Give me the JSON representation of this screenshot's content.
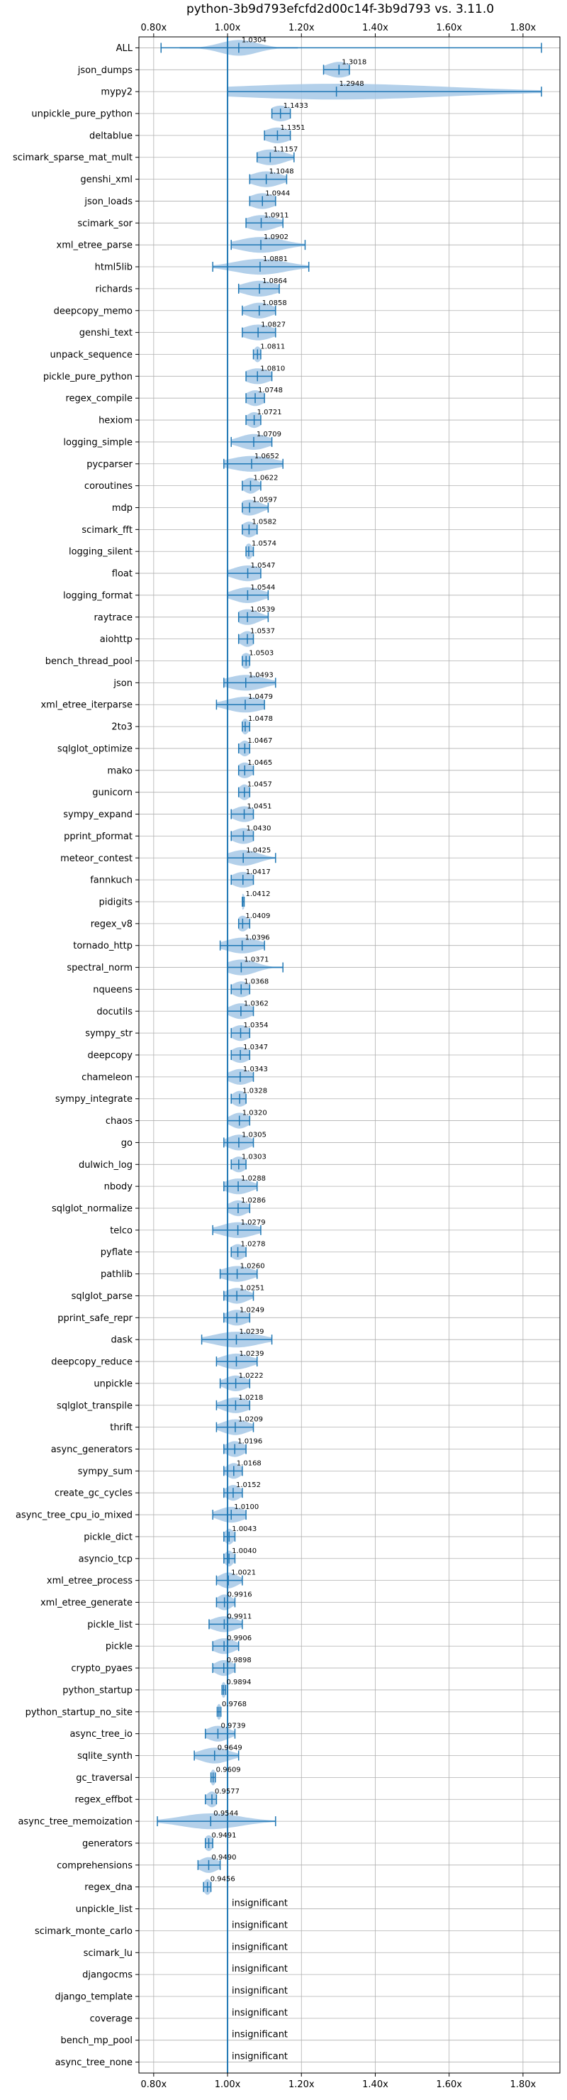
{
  "chart_data": {
    "type": "violin",
    "title": "python-3b9d793efcfd2d00c14f-3b9d793 vs. 3.11.0",
    "xlim": [
      0.76,
      1.9
    ],
    "x_ticks": [
      "0.80x",
      "1.00x",
      "1.20x",
      "1.40x",
      "1.60x",
      "1.80x"
    ],
    "x_tick_values": [
      0.8,
      1.0,
      1.2,
      1.4,
      1.6,
      1.8
    ],
    "reference_line": 1.0,
    "grid": true,
    "colors": {
      "violin": "#a6c8e6",
      "line": "#1f77b4"
    },
    "insignificant_label": "insignificant",
    "benchmarks": [
      {
        "name": "ALL",
        "label": "1.0304",
        "median": 1.0304,
        "min": 0.82,
        "max": 1.85,
        "spread": 0.05
      },
      {
        "name": "json_dumps",
        "label": "1.3018",
        "median": 1.3018,
        "min": 1.26,
        "max": 1.33,
        "spread": 0.035
      },
      {
        "name": "mypy2",
        "label": "1.2948",
        "median": 1.2948,
        "min": 1.0,
        "max": 1.85,
        "spread": 0.3
      },
      {
        "name": "unpickle_pure_python",
        "label": "1.1433",
        "median": 1.1433,
        "min": 1.12,
        "max": 1.17,
        "spread": 0.03
      },
      {
        "name": "deltablue",
        "label": "1.1351",
        "median": 1.1351,
        "min": 1.1,
        "max": 1.17,
        "spread": 0.035
      },
      {
        "name": "scimark_sparse_mat_mult",
        "label": "1.1157",
        "median": 1.1157,
        "min": 1.08,
        "max": 1.18,
        "spread": 0.04
      },
      {
        "name": "genshi_xml",
        "label": "1.1048",
        "median": 1.1048,
        "min": 1.06,
        "max": 1.16,
        "spread": 0.04
      },
      {
        "name": "json_loads",
        "label": "1.0944",
        "median": 1.0944,
        "min": 1.06,
        "max": 1.13,
        "spread": 0.035
      },
      {
        "name": "scimark_sor",
        "label": "1.0911",
        "median": 1.0911,
        "min": 1.05,
        "max": 1.15,
        "spread": 0.04
      },
      {
        "name": "xml_etree_parse",
        "label": "1.0902",
        "median": 1.0902,
        "min": 1.01,
        "max": 1.21,
        "spread": 0.06
      },
      {
        "name": "html5lib",
        "label": "1.0881",
        "median": 1.0881,
        "min": 0.96,
        "max": 1.22,
        "spread": 0.07
      },
      {
        "name": "richards",
        "label": "1.0864",
        "median": 1.0864,
        "min": 1.03,
        "max": 1.14,
        "spread": 0.045
      },
      {
        "name": "deepcopy_memo",
        "label": "1.0858",
        "median": 1.0858,
        "min": 1.04,
        "max": 1.13,
        "spread": 0.035
      },
      {
        "name": "genshi_text",
        "label": "1.0827",
        "median": 1.0827,
        "min": 1.04,
        "max": 1.13,
        "spread": 0.04
      },
      {
        "name": "unpack_sequence",
        "label": "1.0811",
        "median": 1.0811,
        "min": 1.07,
        "max": 1.09,
        "spread": 0.01
      },
      {
        "name": "pickle_pure_python",
        "label": "1.0810",
        "median": 1.081,
        "min": 1.05,
        "max": 1.12,
        "spread": 0.035
      },
      {
        "name": "regex_compile",
        "label": "1.0748",
        "median": 1.0748,
        "min": 1.05,
        "max": 1.1,
        "spread": 0.025
      },
      {
        "name": "hexiom",
        "label": "1.0721",
        "median": 1.0721,
        "min": 1.05,
        "max": 1.09,
        "spread": 0.02
      },
      {
        "name": "logging_simple",
        "label": "1.0709",
        "median": 1.0709,
        "min": 1.01,
        "max": 1.12,
        "spread": 0.04
      },
      {
        "name": "pycparser",
        "label": "1.0652",
        "median": 1.0652,
        "min": 0.99,
        "max": 1.15,
        "spread": 0.06
      },
      {
        "name": "coroutines",
        "label": "1.0622",
        "median": 1.0622,
        "min": 1.04,
        "max": 1.09,
        "spread": 0.02
      },
      {
        "name": "mdp",
        "label": "1.0597",
        "median": 1.0597,
        "min": 1.04,
        "max": 1.11,
        "spread": 0.03
      },
      {
        "name": "scimark_fft",
        "label": "1.0582",
        "median": 1.0582,
        "min": 1.04,
        "max": 1.08,
        "spread": 0.02
      },
      {
        "name": "logging_silent",
        "label": "1.0574",
        "median": 1.0574,
        "min": 1.05,
        "max": 1.07,
        "spread": 0.01
      },
      {
        "name": "float",
        "label": "1.0547",
        "median": 1.0547,
        "min": 1.0,
        "max": 1.09,
        "spread": 0.04
      },
      {
        "name": "logging_format",
        "label": "1.0544",
        "median": 1.0544,
        "min": 1.0,
        "max": 1.11,
        "spread": 0.04
      },
      {
        "name": "raytrace",
        "label": "1.0539",
        "median": 1.0539,
        "min": 1.03,
        "max": 1.11,
        "spread": 0.03
      },
      {
        "name": "aiohttp",
        "label": "1.0537",
        "median": 1.0537,
        "min": 1.03,
        "max": 1.07,
        "spread": 0.02
      },
      {
        "name": "bench_thread_pool",
        "label": "1.0503",
        "median": 1.0503,
        "min": 1.04,
        "max": 1.06,
        "spread": 0.015
      },
      {
        "name": "json",
        "label": "1.0493",
        "median": 1.0493,
        "min": 0.99,
        "max": 1.13,
        "spread": 0.05
      },
      {
        "name": "xml_etree_iterparse",
        "label": "1.0479",
        "median": 1.0479,
        "min": 0.97,
        "max": 1.1,
        "spread": 0.05
      },
      {
        "name": "2to3",
        "label": "1.0478",
        "median": 1.0478,
        "min": 1.04,
        "max": 1.06,
        "spread": 0.01
      },
      {
        "name": "sqlglot_optimize",
        "label": "1.0467",
        "median": 1.0467,
        "min": 1.03,
        "max": 1.06,
        "spread": 0.015
      },
      {
        "name": "mako",
        "label": "1.0465",
        "median": 1.0465,
        "min": 1.03,
        "max": 1.07,
        "spread": 0.02
      },
      {
        "name": "gunicorn",
        "label": "1.0457",
        "median": 1.0457,
        "min": 1.03,
        "max": 1.06,
        "spread": 0.015
      },
      {
        "name": "sympy_expand",
        "label": "1.0451",
        "median": 1.0451,
        "min": 1.01,
        "max": 1.07,
        "spread": 0.03
      },
      {
        "name": "pprint_pformat",
        "label": "1.0430",
        "median": 1.043,
        "min": 1.01,
        "max": 1.07,
        "spread": 0.03
      },
      {
        "name": "meteor_contest",
        "label": "1.0425",
        "median": 1.0425,
        "min": 1.0,
        "max": 1.13,
        "spread": 0.04
      },
      {
        "name": "fannkuch",
        "label": "1.0417",
        "median": 1.0417,
        "min": 1.01,
        "max": 1.07,
        "spread": 0.03
      },
      {
        "name": "pidigits",
        "label": "1.0412",
        "median": 1.0412,
        "min": 1.04,
        "max": 1.045,
        "spread": 0.006
      },
      {
        "name": "regex_v8",
        "label": "1.0409",
        "median": 1.0409,
        "min": 1.03,
        "max": 1.06,
        "spread": 0.015
      },
      {
        "name": "tornado_http",
        "label": "1.0396",
        "median": 1.0396,
        "min": 0.98,
        "max": 1.1,
        "spread": 0.045
      },
      {
        "name": "spectral_norm",
        "label": "1.0371",
        "median": 1.0371,
        "min": 1.0,
        "max": 1.15,
        "spread": 0.04
      },
      {
        "name": "nqueens",
        "label": "1.0368",
        "median": 1.0368,
        "min": 1.01,
        "max": 1.06,
        "spread": 0.025
      },
      {
        "name": "docutils",
        "label": "1.0362",
        "median": 1.0362,
        "min": 1.0,
        "max": 1.07,
        "spread": 0.03
      },
      {
        "name": "sympy_str",
        "label": "1.0354",
        "median": 1.0354,
        "min": 1.01,
        "max": 1.06,
        "spread": 0.025
      },
      {
        "name": "deepcopy",
        "label": "1.0347",
        "median": 1.0347,
        "min": 1.01,
        "max": 1.06,
        "spread": 0.025
      },
      {
        "name": "chameleon",
        "label": "1.0343",
        "median": 1.0343,
        "min": 1.0,
        "max": 1.07,
        "spread": 0.03
      },
      {
        "name": "sympy_integrate",
        "label": "1.0328",
        "median": 1.0328,
        "min": 1.01,
        "max": 1.05,
        "spread": 0.02
      },
      {
        "name": "chaos",
        "label": "1.0320",
        "median": 1.032,
        "min": 1.0,
        "max": 1.06,
        "spread": 0.025
      },
      {
        "name": "go",
        "label": "1.0305",
        "median": 1.0305,
        "min": 0.99,
        "max": 1.07,
        "spread": 0.03
      },
      {
        "name": "dulwich_log",
        "label": "1.0303",
        "median": 1.0303,
        "min": 1.01,
        "max": 1.05,
        "spread": 0.02
      },
      {
        "name": "nbody",
        "label": "1.0288",
        "median": 1.0288,
        "min": 0.99,
        "max": 1.08,
        "spread": 0.035
      },
      {
        "name": "sqlglot_normalize",
        "label": "1.0286",
        "median": 1.0286,
        "min": 1.0,
        "max": 1.06,
        "spread": 0.025
      },
      {
        "name": "telco",
        "label": "1.0279",
        "median": 1.0279,
        "min": 0.96,
        "max": 1.09,
        "spread": 0.045
      },
      {
        "name": "pyflate",
        "label": "1.0278",
        "median": 1.0278,
        "min": 1.01,
        "max": 1.05,
        "spread": 0.02
      },
      {
        "name": "pathlib",
        "label": "1.0260",
        "median": 1.026,
        "min": 0.98,
        "max": 1.08,
        "spread": 0.04
      },
      {
        "name": "sqlglot_parse",
        "label": "1.0251",
        "median": 1.0251,
        "min": 0.99,
        "max": 1.07,
        "spread": 0.03
      },
      {
        "name": "pprint_safe_repr",
        "label": "1.0249",
        "median": 1.0249,
        "min": 0.99,
        "max": 1.06,
        "spread": 0.03
      },
      {
        "name": "dask",
        "label": "1.0239",
        "median": 1.0239,
        "min": 0.93,
        "max": 1.12,
        "spread": 0.06
      },
      {
        "name": "deepcopy_reduce",
        "label": "1.0239",
        "median": 1.0239,
        "min": 0.97,
        "max": 1.08,
        "spread": 0.04
      },
      {
        "name": "unpickle",
        "label": "1.0222",
        "median": 1.0222,
        "min": 0.98,
        "max": 1.06,
        "spread": 0.03
      },
      {
        "name": "sqlglot_transpile",
        "label": "1.0218",
        "median": 1.0218,
        "min": 0.97,
        "max": 1.06,
        "spread": 0.035
      },
      {
        "name": "thrift",
        "label": "1.0209",
        "median": 1.0209,
        "min": 0.97,
        "max": 1.07,
        "spread": 0.035
      },
      {
        "name": "async_generators",
        "label": "1.0196",
        "median": 1.0196,
        "min": 0.99,
        "max": 1.05,
        "spread": 0.025
      },
      {
        "name": "sympy_sum",
        "label": "1.0168",
        "median": 1.0168,
        "min": 0.99,
        "max": 1.04,
        "spread": 0.02
      },
      {
        "name": "create_gc_cycles",
        "label": "1.0152",
        "median": 1.0152,
        "min": 0.99,
        "max": 1.04,
        "spread": 0.02
      },
      {
        "name": "async_tree_cpu_io_mixed",
        "label": "1.0100",
        "median": 1.01,
        "min": 0.96,
        "max": 1.05,
        "spread": 0.035
      },
      {
        "name": "pickle_dict",
        "label": "1.0043",
        "median": 1.0043,
        "min": 0.99,
        "max": 1.02,
        "spread": 0.012
      },
      {
        "name": "asyncio_tcp",
        "label": "1.0040",
        "median": 1.004,
        "min": 0.99,
        "max": 1.02,
        "spread": 0.012
      },
      {
        "name": "xml_etree_process",
        "label": "1.0021",
        "median": 1.0021,
        "min": 0.97,
        "max": 1.04,
        "spread": 0.025
      },
      {
        "name": "xml_etree_generate",
        "label": "0.9916",
        "median": 0.9916,
        "min": 0.97,
        "max": 1.02,
        "spread": 0.02
      },
      {
        "name": "pickle_list",
        "label": "0.9911",
        "median": 0.9911,
        "min": 0.95,
        "max": 1.04,
        "spread": 0.035
      },
      {
        "name": "pickle",
        "label": "0.9906",
        "median": 0.9906,
        "min": 0.96,
        "max": 1.03,
        "spread": 0.03
      },
      {
        "name": "crypto_pyaes",
        "label": "0.9898",
        "median": 0.9898,
        "min": 0.96,
        "max": 1.02,
        "spread": 0.025
      },
      {
        "name": "python_startup",
        "label": "0.9894",
        "median": 0.9894,
        "min": 0.985,
        "max": 0.995,
        "spread": 0.006
      },
      {
        "name": "python_startup_no_site",
        "label": "0.9768",
        "median": 0.9768,
        "min": 0.972,
        "max": 0.982,
        "spread": 0.006
      },
      {
        "name": "async_tree_io",
        "label": "0.9739",
        "median": 0.9739,
        "min": 0.94,
        "max": 1.02,
        "spread": 0.03
      },
      {
        "name": "sqlite_synth",
        "label": "0.9649",
        "median": 0.9649,
        "min": 0.91,
        "max": 1.03,
        "spread": 0.04
      },
      {
        "name": "gc_traversal",
        "label": "0.9609",
        "median": 0.9609,
        "min": 0.955,
        "max": 0.967,
        "spread": 0.007
      },
      {
        "name": "regex_effbot",
        "label": "0.9577",
        "median": 0.9577,
        "min": 0.94,
        "max": 0.97,
        "spread": 0.015
      },
      {
        "name": "async_tree_memoization",
        "label": "0.9544",
        "median": 0.9544,
        "min": 0.81,
        "max": 1.13,
        "spread": 0.08
      },
      {
        "name": "generators",
        "label": "0.9491",
        "median": 0.9491,
        "min": 0.94,
        "max": 0.96,
        "spread": 0.012
      },
      {
        "name": "comprehensions",
        "label": "0.9490",
        "median": 0.949,
        "min": 0.92,
        "max": 0.98,
        "spread": 0.025
      },
      {
        "name": "regex_dna",
        "label": "0.9456",
        "median": 0.9456,
        "min": 0.935,
        "max": 0.955,
        "spread": 0.01
      },
      {
        "name": "unpickle_list",
        "label": "insignificant",
        "insignificant": true
      },
      {
        "name": "scimark_monte_carlo",
        "label": "insignificant",
        "insignificant": true
      },
      {
        "name": "scimark_lu",
        "label": "insignificant",
        "insignificant": true
      },
      {
        "name": "djangocms",
        "label": "insignificant",
        "insignificant": true
      },
      {
        "name": "django_template",
        "label": "insignificant",
        "insignificant": true
      },
      {
        "name": "coverage",
        "label": "insignificant",
        "insignificant": true
      },
      {
        "name": "bench_mp_pool",
        "label": "insignificant",
        "insignificant": true
      },
      {
        "name": "async_tree_none",
        "label": "insignificant",
        "insignificant": true
      }
    ]
  }
}
